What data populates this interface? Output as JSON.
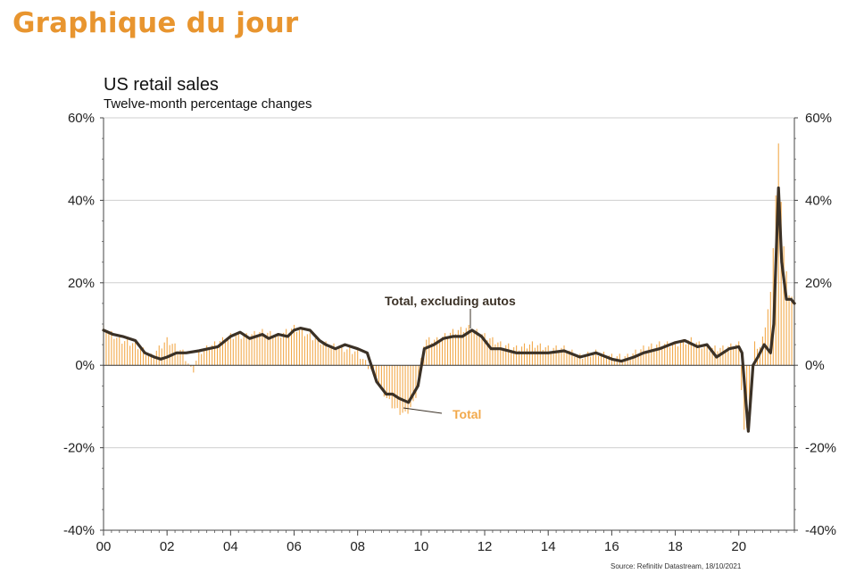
{
  "header": {
    "title": "Graphique du jour"
  },
  "colors": {
    "total": "#f2a94b",
    "excl_autos": "#3b3126",
    "title": "#e8952f",
    "grid": "#cfcfcf"
  },
  "chart_data": {
    "type": "line",
    "title": "US retail sales",
    "subtitle": "Twelve-month percentage changes",
    "xlabel": "",
    "ylabel": "",
    "x_ticks": [
      "00",
      "02",
      "04",
      "06",
      "08",
      "10",
      "12",
      "14",
      "16",
      "18",
      "20"
    ],
    "xlim": [
      2000,
      2021.75
    ],
    "y_ticks": [
      "60%",
      "40%",
      "20%",
      "0%",
      "-20%",
      "-40%"
    ],
    "ylim": [
      -40,
      60
    ],
    "grid": true,
    "series": [
      {
        "name": "Total, excluding autos",
        "style": "line",
        "x": [
          2000,
          2000.3,
          2000.6,
          2001,
          2001.3,
          2001.6,
          2001.8,
          2002,
          2002.3,
          2002.6,
          2003,
          2003.3,
          2003.6,
          2004,
          2004.3,
          2004.6,
          2005,
          2005.2,
          2005.5,
          2005.8,
          2006,
          2006.2,
          2006.5,
          2006.8,
          2007,
          2007.3,
          2007.6,
          2008,
          2008.3,
          2008.6,
          2008.9,
          2009.1,
          2009.3,
          2009.6,
          2009.9,
          2010.1,
          2010.4,
          2010.7,
          2011,
          2011.3,
          2011.6,
          2011.9,
          2012.2,
          2012.5,
          2013,
          2013.5,
          2014,
          2014.5,
          2015,
          2015.5,
          2016,
          2016.3,
          2016.7,
          2017,
          2017.5,
          2018,
          2018.3,
          2018.7,
          2019,
          2019.3,
          2019.7,
          2020,
          2020.1,
          2020.3,
          2020.45,
          2020.6,
          2020.8,
          2021,
          2021.1,
          2021.25,
          2021.35,
          2021.5,
          2021.65,
          2021.75
        ],
        "y": [
          8.5,
          7.5,
          7,
          6,
          3,
          2,
          1.5,
          2,
          3,
          3,
          3.5,
          4,
          4.5,
          7,
          8,
          6.5,
          7.5,
          6.5,
          7.5,
          7,
          8.5,
          9,
          8.5,
          6,
          5,
          4,
          5,
          4,
          3,
          -4,
          -7,
          -7,
          -8,
          -9,
          -5,
          4,
          5,
          6.5,
          7,
          7,
          8.5,
          7,
          4,
          4,
          3,
          3,
          3,
          3.5,
          2,
          3,
          1.5,
          1,
          2,
          3,
          4,
          5.5,
          6,
          4.5,
          5,
          2,
          4,
          4.5,
          3,
          -16,
          0,
          2,
          5,
          3,
          10,
          43,
          25,
          16,
          16,
          15
        ],
        "labels": {
          "text": "Total, excluding autos"
        }
      },
      {
        "name": "Total",
        "style": "bars",
        "x": [
          2000,
          2000.5,
          2001,
          2001.5,
          2002,
          2002.5,
          2002.8,
          2003,
          2003.5,
          2004,
          2004.5,
          2005,
          2005.5,
          2006,
          2006.5,
          2007,
          2007.5,
          2008,
          2008.5,
          2008.9,
          2009.2,
          2009.5,
          2009.8,
          2010.1,
          2010.5,
          2011,
          2011.5,
          2012,
          2012.5,
          2013,
          2013.5,
          2014,
          2014.5,
          2015,
          2015.5,
          2016,
          2016.5,
          2017,
          2017.5,
          2018,
          2018.5,
          2019,
          2019.5,
          2020,
          2020.2,
          2020.35,
          2020.5,
          2020.7,
          2021,
          2021.25,
          2021.4,
          2021.55,
          2021.7
        ],
        "y": [
          9,
          6,
          5,
          2,
          6,
          3,
          -2,
          3,
          5,
          7,
          7,
          8,
          7,
          9,
          7,
          5,
          4,
          3,
          -2,
          -8,
          -11,
          -12,
          -9,
          6,
          6,
          8,
          9,
          7,
          5,
          4,
          5,
          4,
          4,
          2,
          3,
          2,
          2,
          4,
          5,
          5,
          6,
          4,
          4,
          5,
          -20,
          -8,
          5,
          4,
          17,
          53,
          30,
          18,
          16
        ],
        "labels": {
          "text": "Total"
        }
      }
    ]
  },
  "source": "Source: Refinitiv Datastream, 18/10/2021"
}
